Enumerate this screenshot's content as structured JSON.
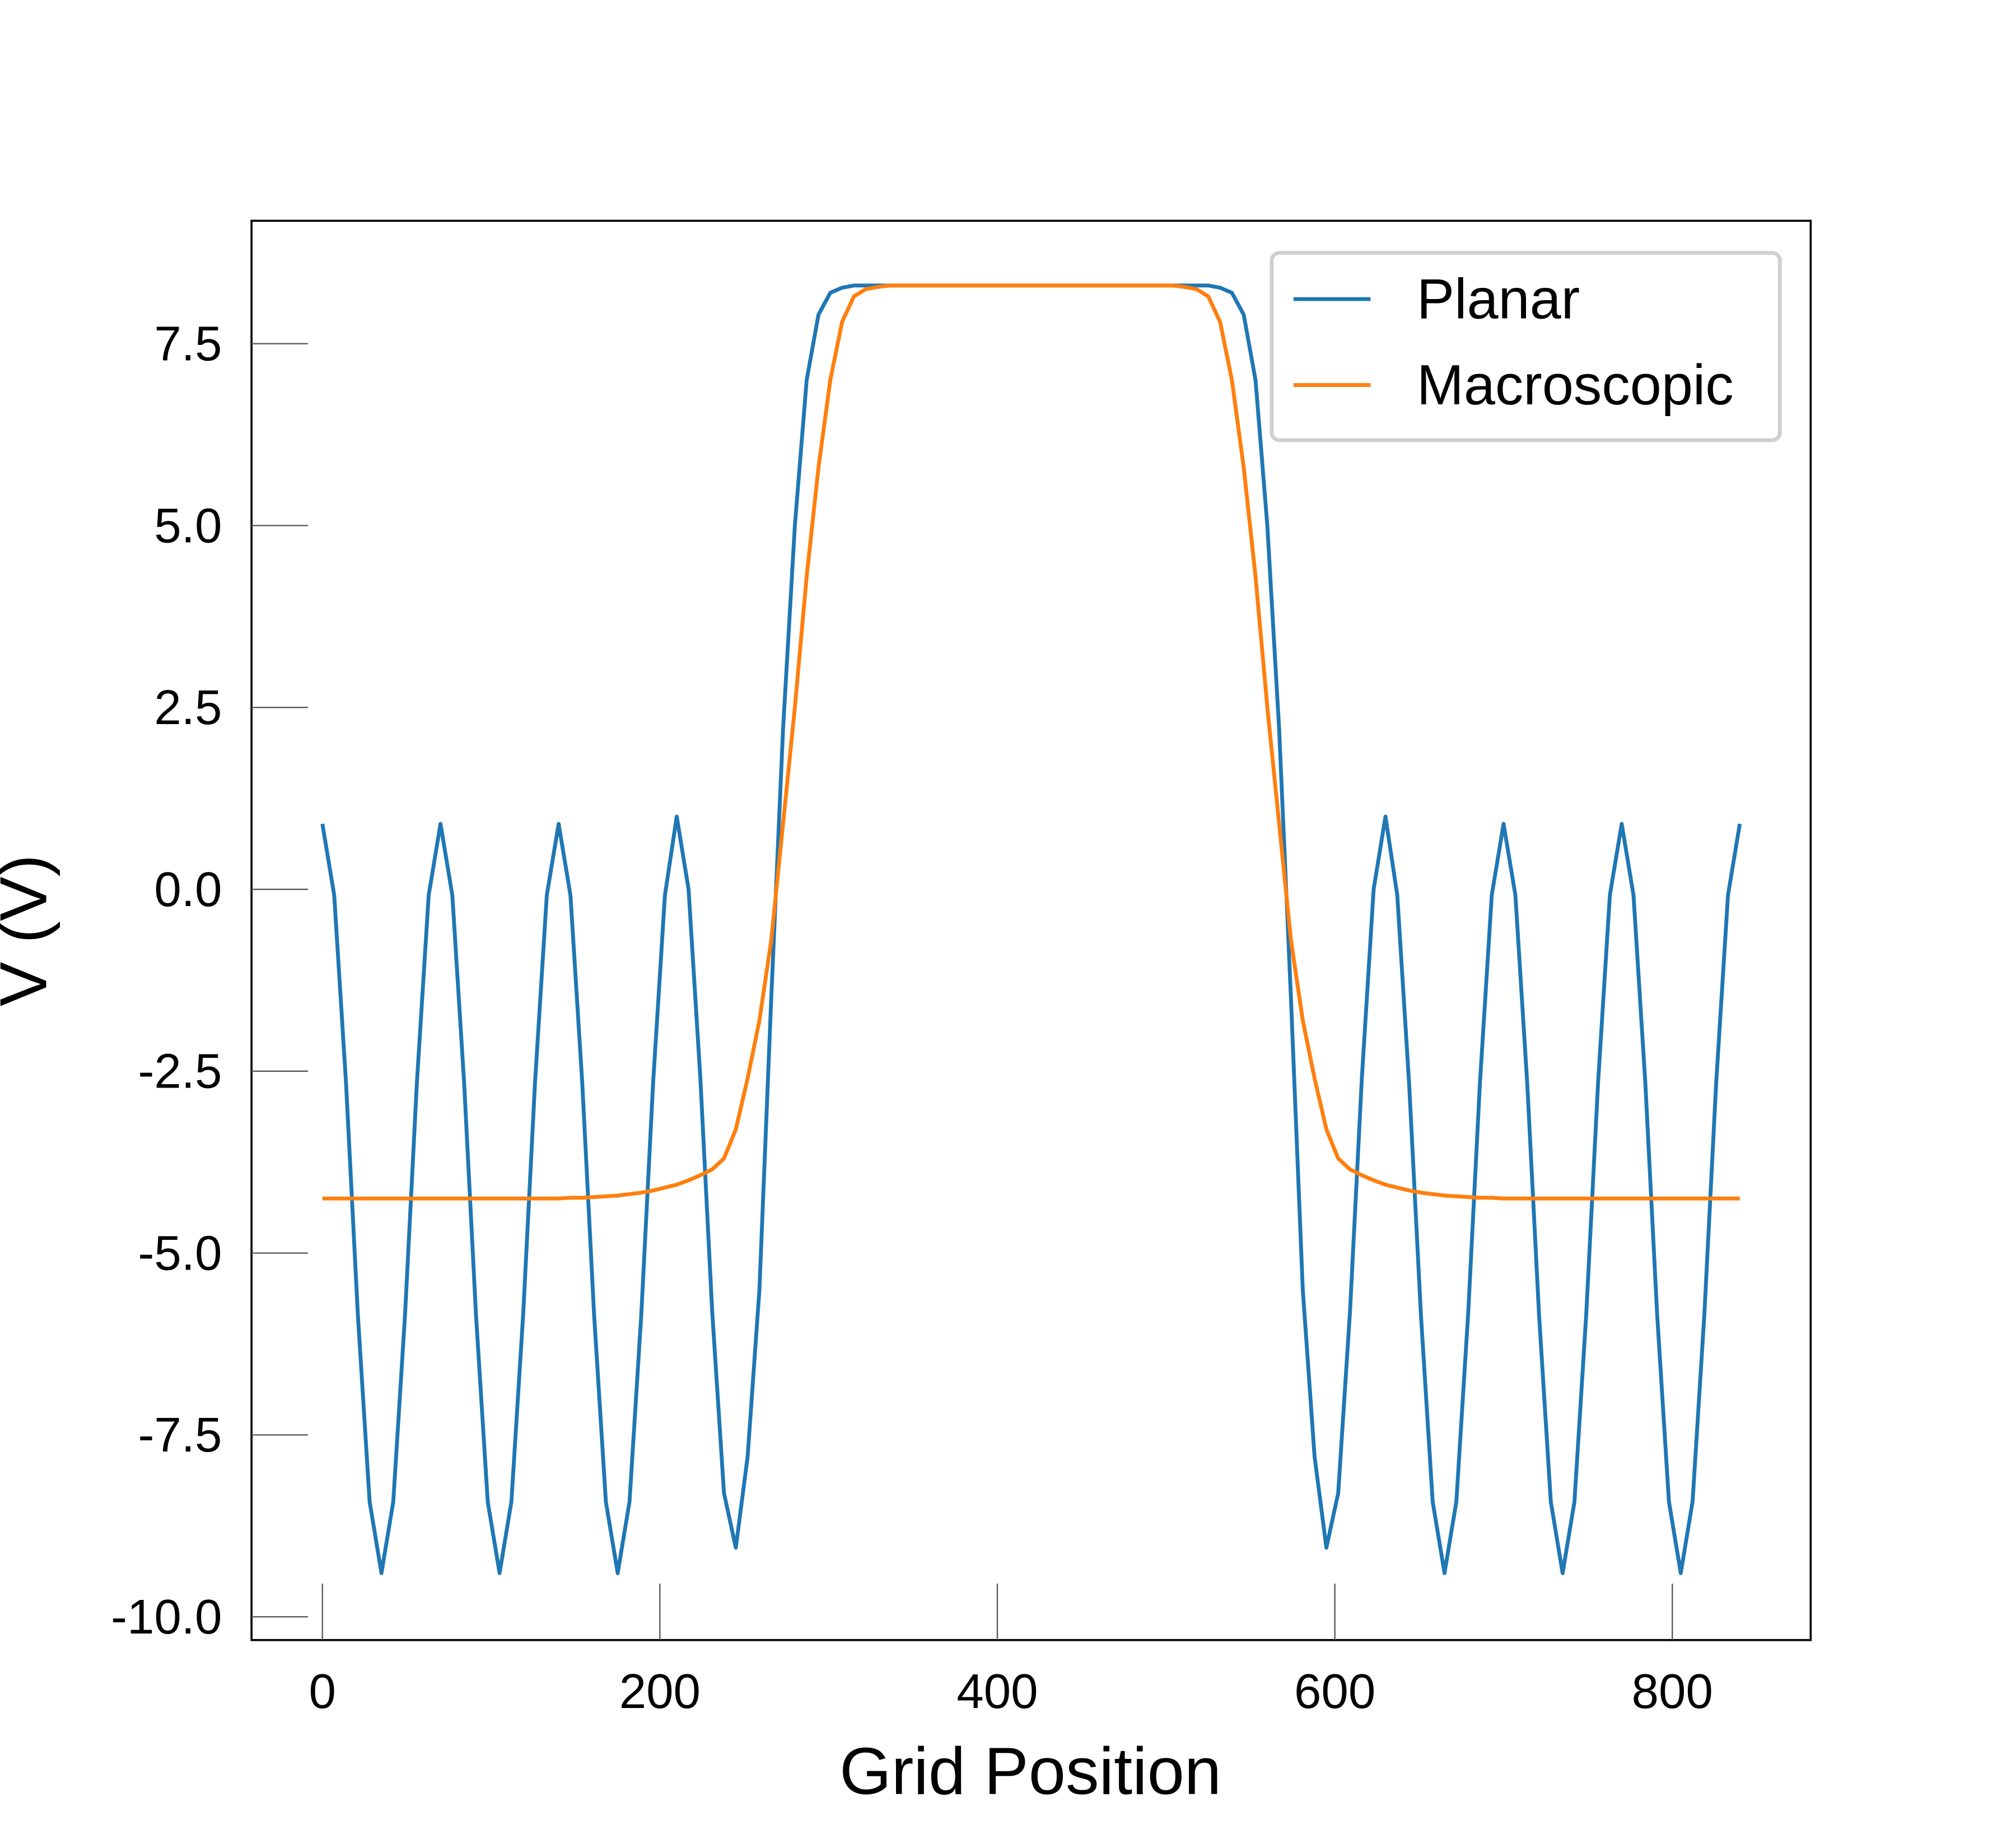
{
  "chart_data": {
    "type": "line",
    "x_label": "Grid Position",
    "y_label": "V (V)",
    "x": [
      0,
      7,
      14,
      21,
      28,
      35,
      42,
      49,
      56,
      63,
      70,
      77,
      84,
      91,
      98,
      105,
      112,
      119,
      126,
      133,
      140,
      147,
      154,
      161,
      168,
      175,
      182,
      189,
      196,
      203,
      210,
      217,
      224,
      231,
      238,
      245,
      252,
      259,
      266,
      273,
      280,
      287,
      294,
      301,
      308,
      315,
      322,
      329,
      336,
      343,
      350,
      357,
      364,
      371,
      378,
      385,
      392,
      399,
      406,
      413,
      420,
      427,
      434,
      441,
      448,
      455,
      462,
      469,
      476,
      483,
      490,
      497,
      504,
      511,
      518,
      525,
      532,
      539,
      546,
      553,
      560,
      567,
      574,
      581,
      588,
      595,
      602,
      609,
      616,
      623,
      630,
      637,
      644,
      651,
      658,
      665,
      672,
      679,
      686,
      693,
      700,
      707,
      714,
      721,
      728,
      735,
      742,
      749,
      756,
      763,
      770,
      777,
      784,
      791,
      798,
      805,
      812,
      819,
      826,
      833,
      840
    ],
    "series": [
      {
        "name": "Planar",
        "color": "#1f77b4",
        "values": [
          0.9,
          -0.08,
          -2.66,
          -5.84,
          -8.42,
          -9.4,
          -8.42,
          -5.84,
          -2.66,
          -0.08,
          0.9,
          -0.08,
          -2.66,
          -5.84,
          -8.42,
          -9.4,
          -8.42,
          -5.84,
          -2.66,
          -0.08,
          0.9,
          -0.08,
          -2.66,
          -5.84,
          -8.42,
          -9.4,
          -8.42,
          -5.84,
          -2.66,
          -0.08,
          1.0,
          0.0,
          -2.6,
          -5.8,
          -8.3,
          -9.05,
          -7.8,
          -5.5,
          -1.5,
          2.2,
          5.0,
          7.0,
          7.9,
          8.2,
          8.27,
          8.3,
          8.3,
          8.3,
          8.3,
          8.3,
          8.3,
          8.3,
          8.3,
          8.3,
          8.3,
          8.3,
          8.3,
          8.3,
          8.3,
          8.3,
          8.3,
          8.3,
          8.3,
          8.3,
          8.3,
          8.3,
          8.3,
          8.3,
          8.3,
          8.3,
          8.3,
          8.3,
          8.3,
          8.3,
          8.3,
          8.3,
          8.27,
          8.2,
          7.9,
          7.0,
          5.0,
          2.2,
          -1.5,
          -5.5,
          -7.8,
          -9.05,
          -8.3,
          -5.8,
          -2.6,
          0.0,
          1.0,
          -0.08,
          -2.66,
          -5.84,
          -8.42,
          -9.4,
          -8.42,
          -5.84,
          -2.66,
          -0.08,
          0.9,
          -0.08,
          -2.66,
          -5.84,
          -8.42,
          -9.4,
          -8.42,
          -5.84,
          -2.66,
          -0.08,
          0.9,
          -0.08,
          -2.66,
          -5.84,
          -8.42,
          -9.4,
          -8.42,
          -5.84,
          -2.66,
          -0.08,
          0.9
        ]
      },
      {
        "name": "Macroscopic",
        "color": "#ff7f0e",
        "values": [
          -4.25,
          -4.25,
          -4.25,
          -4.25,
          -4.25,
          -4.25,
          -4.25,
          -4.25,
          -4.25,
          -4.25,
          -4.25,
          -4.25,
          -4.25,
          -4.25,
          -4.25,
          -4.25,
          -4.25,
          -4.25,
          -4.25,
          -4.25,
          -4.25,
          -4.24,
          -4.24,
          -4.23,
          -4.22,
          -4.21,
          -4.19,
          -4.17,
          -4.14,
          -4.1,
          -4.06,
          -4.0,
          -3.93,
          -3.85,
          -3.7,
          -3.3,
          -2.6,
          -1.8,
          -0.7,
          0.9,
          2.5,
          4.3,
          5.8,
          7.0,
          7.8,
          8.15,
          8.25,
          8.28,
          8.3,
          8.3,
          8.3,
          8.3,
          8.3,
          8.3,
          8.3,
          8.3,
          8.3,
          8.3,
          8.3,
          8.3,
          8.3,
          8.3,
          8.3,
          8.3,
          8.3,
          8.3,
          8.3,
          8.3,
          8.3,
          8.3,
          8.3,
          8.3,
          8.3,
          8.28,
          8.25,
          8.15,
          7.8,
          7.0,
          5.8,
          4.3,
          2.5,
          0.9,
          -0.7,
          -1.8,
          -2.6,
          -3.3,
          -3.7,
          -3.85,
          -3.93,
          -4.0,
          -4.06,
          -4.1,
          -4.14,
          -4.17,
          -4.19,
          -4.21,
          -4.22,
          -4.23,
          -4.24,
          -4.24,
          -4.25,
          -4.25,
          -4.25,
          -4.25,
          -4.25,
          -4.25,
          -4.25,
          -4.25,
          -4.25,
          -4.25,
          -4.25,
          -4.25,
          -4.25,
          -4.25,
          -4.25,
          -4.25,
          -4.25,
          -4.25,
          -4.25,
          -4.25,
          -4.25
        ]
      }
    ],
    "xlim": [
      -42,
      882
    ],
    "xticks": [
      0,
      200,
      400,
      600,
      800
    ],
    "ylim": [
      -10.32,
      9.19
    ],
    "yticks": [
      {
        "value": -10,
        "label": "-10.0"
      },
      -7.5,
      {
        "value": -5,
        "label": "-5.0"
      },
      -2.5,
      {
        "value": 0,
        "label": "0.0"
      },
      2.5,
      {
        "value": 5,
        "label": "5.0"
      },
      7.5
    ],
    "grid": false,
    "legend": "upper right"
  }
}
